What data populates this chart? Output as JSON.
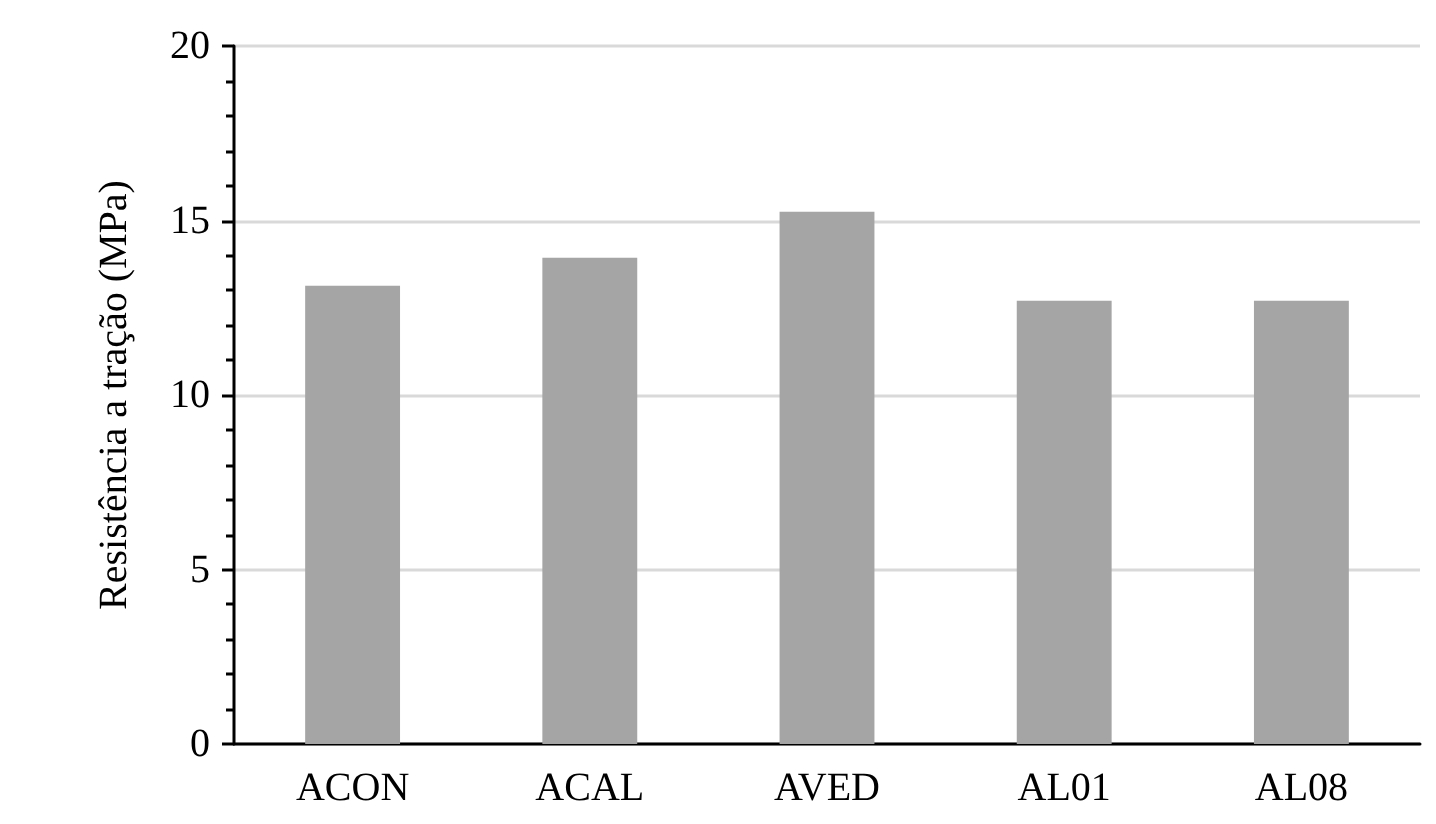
{
  "chart_data": {
    "type": "bar",
    "ylabel": "Resistência a tração (MPa)",
    "categories": [
      "ACON",
      "ACAL",
      "AVED",
      "AL01",
      "AL08"
    ],
    "values": [
      13.13,
      13.93,
      15.25,
      12.7,
      12.7
    ],
    "color": "#a5a5a5",
    "ylim": [
      0,
      20
    ],
    "yticks": [
      0,
      5,
      10,
      15,
      20
    ],
    "grid": "y"
  }
}
